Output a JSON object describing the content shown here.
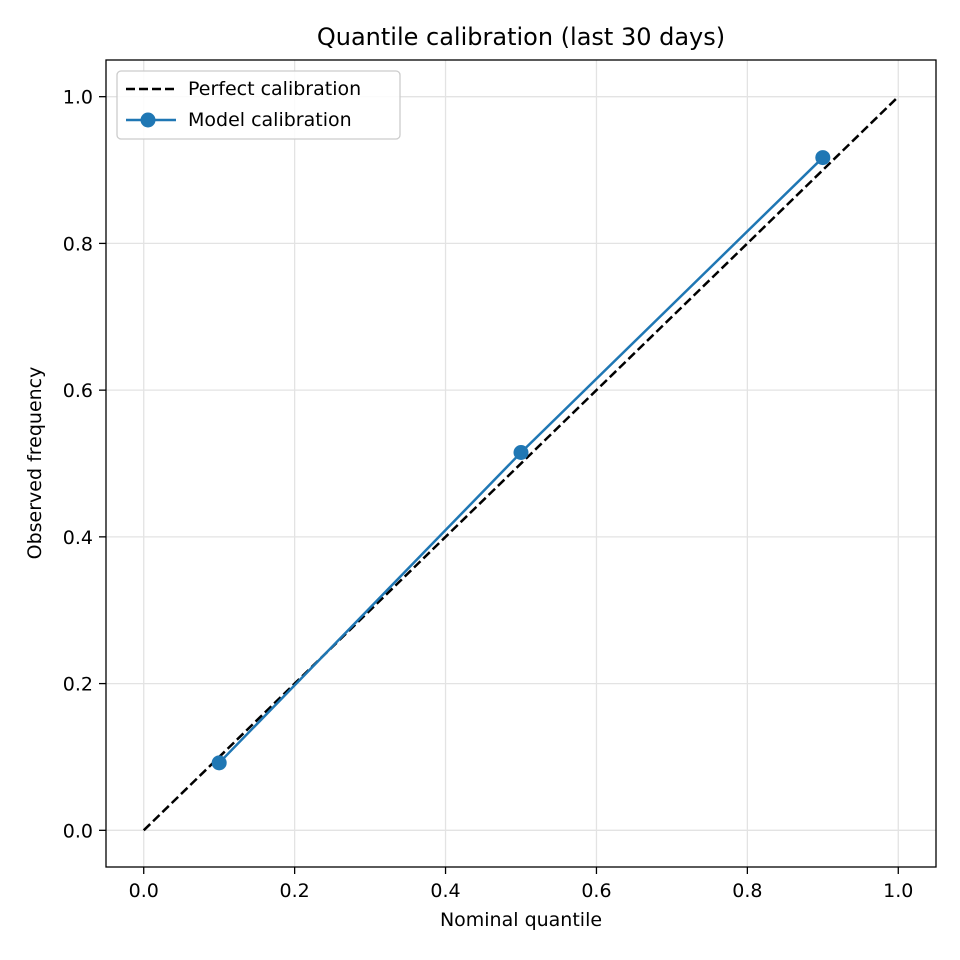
{
  "chart_data": {
    "type": "line",
    "title": "Quantile calibration (last 30 days)",
    "xlabel": "Nominal quantile",
    "ylabel": "Observed frequency",
    "xlim": [
      -0.05,
      1.05
    ],
    "ylim": [
      -0.05,
      1.05
    ],
    "x_ticks": [
      "0.0",
      "0.2",
      "0.4",
      "0.6",
      "0.8",
      "1.0"
    ],
    "y_ticks": [
      "0.0",
      "0.2",
      "0.4",
      "0.6",
      "0.8",
      "1.0"
    ],
    "grid": true,
    "legend_position": "top-left",
    "series": [
      {
        "name": "Perfect calibration",
        "style": "dashed",
        "marker": "none",
        "color": "#000000",
        "x": [
          0.0,
          1.0
        ],
        "y": [
          0.0,
          1.0
        ]
      },
      {
        "name": "Model calibration",
        "style": "solid",
        "marker": "circle",
        "color": "#1f77b4",
        "x": [
          0.1,
          0.5,
          0.9
        ],
        "y": [
          0.092,
          0.515,
          0.917
        ]
      }
    ]
  }
}
